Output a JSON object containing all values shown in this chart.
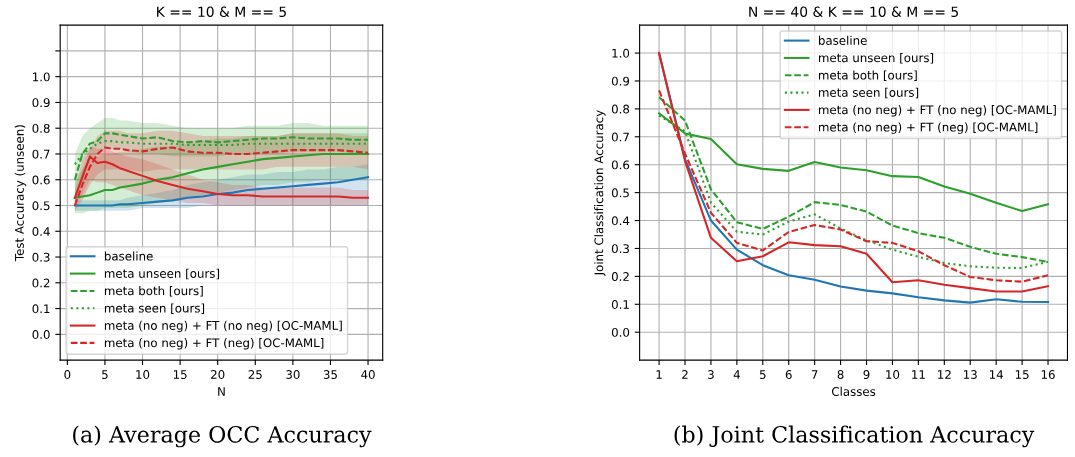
{
  "chart_data": [
    {
      "type": "line",
      "title": "K == 10 & M == 5",
      "xlabel": "N",
      "ylabel": "Test Accuracy (unseen)",
      "annotations": [
        "(a) Average OCC Accuracy"
      ],
      "x": [
        1,
        2,
        3,
        4,
        5,
        6,
        7,
        8,
        10,
        12,
        14,
        16,
        18,
        20,
        22,
        24,
        26,
        28,
        30,
        32,
        34,
        36,
        38,
        40
      ],
      "xlim": [
        -0.95,
        41.95
      ],
      "xticks": [
        0,
        5,
        10,
        15,
        20,
        25,
        30,
        35,
        40
      ],
      "ylim": [
        -0.1,
        1.2
      ],
      "yticks": [
        {
          "value": 0,
          "label": "0.0"
        },
        0.1,
        0.2,
        0.3,
        0.4,
        0.5,
        0.6,
        0.7,
        0.8,
        0.9,
        {
          "value": 1,
          "label": "1.0"
        },
        {
          "value": 1.1,
          "label": null
        }
      ],
      "grid": true,
      "legend": "bottom left",
      "series": [
        {
          "name": "baseline",
          "color": "#1f77b4",
          "line_style": "solid",
          "values": [
            0.5,
            0.5,
            0.5,
            0.5,
            0.5,
            0.5,
            0.505,
            0.505,
            0.51,
            0.515,
            0.52,
            0.53,
            0.535,
            0.545,
            0.55,
            0.56,
            0.565,
            0.57,
            0.575,
            0.58,
            0.585,
            0.59,
            0.6,
            0.61
          ],
          "lower": [
            0.48,
            0.48,
            0.48,
            0.48,
            0.48,
            0.48,
            0.48,
            0.48,
            0.49,
            0.49,
            0.49,
            0.49,
            0.5,
            0.5,
            0.5,
            0.5,
            0.5,
            0.5,
            0.5,
            0.5,
            0.5,
            0.5,
            0.5,
            0.5
          ],
          "upper": [
            0.52,
            0.52,
            0.52,
            0.52,
            0.52,
            0.52,
            0.52,
            0.53,
            0.54,
            0.55,
            0.56,
            0.58,
            0.59,
            0.6,
            0.61,
            0.62,
            0.62,
            0.63,
            0.63,
            0.64,
            0.64,
            0.65,
            0.65,
            0.66
          ]
        },
        {
          "name": "meta unseen [ours]",
          "color": "#2ca02c",
          "line_style": "solid",
          "values": [
            0.53,
            0.535,
            0.54,
            0.55,
            0.56,
            0.56,
            0.57,
            0.575,
            0.585,
            0.6,
            0.61,
            0.625,
            0.64,
            0.65,
            0.66,
            0.67,
            0.68,
            0.685,
            0.69,
            0.695,
            0.7,
            0.7,
            0.7,
            0.7
          ],
          "lower": [
            0.47,
            0.47,
            0.48,
            0.48,
            0.49,
            0.49,
            0.49,
            0.49,
            0.5,
            0.51,
            0.52,
            0.53,
            0.54,
            0.55,
            0.56,
            0.57,
            0.58,
            0.58,
            0.59,
            0.59,
            0.6,
            0.6,
            0.6,
            0.6
          ],
          "upper": [
            0.6,
            0.64,
            0.67,
            0.69,
            0.7,
            0.7,
            0.71,
            0.71,
            0.72,
            0.73,
            0.73,
            0.74,
            0.75,
            0.76,
            0.76,
            0.77,
            0.77,
            0.77,
            0.78,
            0.78,
            0.78,
            0.78,
            0.78,
            0.78
          ]
        },
        {
          "name": "meta both [ours]",
          "color": "#2ca02c",
          "line_style": "dashed",
          "values": [
            0.6,
            0.7,
            0.74,
            0.75,
            0.78,
            0.78,
            0.775,
            0.77,
            0.76,
            0.765,
            0.75,
            0.745,
            0.75,
            0.745,
            0.75,
            0.755,
            0.76,
            0.76,
            0.765,
            0.76,
            0.76,
            0.76,
            0.755,
            0.755
          ],
          "lower": [
            0.5,
            0.62,
            0.67,
            0.7,
            0.72,
            0.72,
            0.72,
            0.71,
            0.7,
            0.7,
            0.69,
            0.69,
            0.69,
            0.69,
            0.7,
            0.7,
            0.7,
            0.7,
            0.71,
            0.71,
            0.71,
            0.71,
            0.7,
            0.7
          ],
          "upper": [
            0.7,
            0.77,
            0.8,
            0.82,
            0.84,
            0.84,
            0.83,
            0.83,
            0.82,
            0.82,
            0.81,
            0.8,
            0.8,
            0.8,
            0.8,
            0.81,
            0.81,
            0.81,
            0.82,
            0.82,
            0.81,
            0.81,
            0.81,
            0.81
          ]
        },
        {
          "name": "meta seen [ours]",
          "color": "#2ca02c",
          "line_style": "dotted",
          "values": [
            0.66,
            0.7,
            0.72,
            0.74,
            0.75,
            0.75,
            0.745,
            0.745,
            0.74,
            0.74,
            0.74,
            0.735,
            0.735,
            0.735,
            0.735,
            0.74,
            0.74,
            0.74,
            0.74,
            0.74,
            0.74,
            0.74,
            0.74,
            0.74
          ]
        },
        {
          "name": "meta (no neg) + FT (no neg) [OC-MAML]",
          "color": "#d62728",
          "line_style": "solid",
          "values": [
            0.53,
            0.61,
            0.69,
            0.665,
            0.67,
            0.66,
            0.645,
            0.635,
            0.615,
            0.595,
            0.58,
            0.565,
            0.555,
            0.545,
            0.54,
            0.54,
            0.535,
            0.535,
            0.535,
            0.535,
            0.535,
            0.535,
            0.53,
            0.53
          ],
          "lower": [
            0.5,
            0.54,
            0.6,
            0.59,
            0.59,
            0.58,
            0.57,
            0.56,
            0.54,
            0.53,
            0.52,
            0.51,
            0.51,
            0.5,
            0.5,
            0.5,
            0.5,
            0.5,
            0.5,
            0.5,
            0.5,
            0.5,
            0.5,
            0.5
          ],
          "upper": [
            0.56,
            0.68,
            0.73,
            0.72,
            0.72,
            0.71,
            0.7,
            0.69,
            0.68,
            0.66,
            0.64,
            0.62,
            0.6,
            0.59,
            0.58,
            0.58,
            0.57,
            0.57,
            0.57,
            0.57,
            0.57,
            0.57,
            0.56,
            0.56
          ]
        },
        {
          "name": "meta (no neg) + FT (neg) [OC-MAML]",
          "color": "#d62728",
          "line_style": "dashed",
          "values": [
            0.5,
            0.58,
            0.65,
            0.7,
            0.725,
            0.72,
            0.72,
            0.715,
            0.71,
            0.72,
            0.725,
            0.71,
            0.705,
            0.705,
            0.7,
            0.7,
            0.705,
            0.71,
            0.715,
            0.715,
            0.715,
            0.715,
            0.71,
            0.705
          ],
          "lower": [
            0.48,
            0.52,
            0.58,
            0.62,
            0.64,
            0.64,
            0.64,
            0.64,
            0.63,
            0.64,
            0.64,
            0.64,
            0.64,
            0.64,
            0.64,
            0.64,
            0.64,
            0.65,
            0.65,
            0.65,
            0.65,
            0.65,
            0.65,
            0.64
          ],
          "upper": [
            0.52,
            0.64,
            0.72,
            0.77,
            0.79,
            0.79,
            0.79,
            0.78,
            0.78,
            0.79,
            0.79,
            0.78,
            0.77,
            0.77,
            0.77,
            0.77,
            0.77,
            0.77,
            0.78,
            0.78,
            0.78,
            0.78,
            0.77,
            0.77
          ]
        }
      ]
    },
    {
      "type": "line",
      "title": "N == 40 & K == 10 & M == 5",
      "xlabel": "Classes",
      "ylabel": "Joint Classification Accuracy",
      "annotations": [
        "(b) Joint Classification Accuracy"
      ],
      "categories": [
        "1",
        "2",
        "3",
        "4",
        "5",
        "6",
        "7",
        "8",
        "9",
        "10",
        "11",
        "12",
        "13",
        "14",
        "15",
        "16"
      ],
      "ylim": [
        -0.1,
        1.1
      ],
      "yticks": [
        {
          "value": 0,
          "label": "0.0"
        },
        0.1,
        0.2,
        0.3,
        0.4,
        0.5,
        0.6,
        0.7,
        0.8,
        0.9,
        {
          "value": 1,
          "label": "1.0"
        }
      ],
      "grid": true,
      "legend": "top right",
      "series": [
        {
          "name": "baseline",
          "color": "#1f77b4",
          "line_style": "solid",
          "values": [
            1.0,
            0.62,
            0.4,
            0.296,
            0.24,
            0.204,
            0.188,
            0.164,
            0.149,
            0.139,
            0.125,
            0.114,
            0.106,
            0.118,
            0.109,
            0.108
          ]
        },
        {
          "name": "meta unseen [ours]",
          "color": "#2ca02c",
          "line_style": "solid",
          "values": [
            0.784,
            0.712,
            0.692,
            0.602,
            0.585,
            0.578,
            0.61,
            0.59,
            0.58,
            0.559,
            0.556,
            0.522,
            0.496,
            0.464,
            0.434,
            0.458
          ]
        },
        {
          "name": "meta both [ours]",
          "color": "#2ca02c",
          "line_style": "dashed",
          "values": [
            0.842,
            0.758,
            0.512,
            0.394,
            0.37,
            0.414,
            0.466,
            0.456,
            0.432,
            0.382,
            0.355,
            0.338,
            0.306,
            0.281,
            0.269,
            0.252
          ]
        },
        {
          "name": "meta seen [ours]",
          "color": "#2ca02c",
          "line_style": "dotted",
          "values": [
            0.776,
            0.72,
            0.464,
            0.36,
            0.35,
            0.396,
            0.422,
            0.372,
            0.329,
            0.296,
            0.27,
            0.248,
            0.236,
            0.231,
            0.23,
            0.252
          ]
        },
        {
          "name": "meta (no neg) + FT (no neg) [OC-MAML]",
          "color": "#d62728",
          "line_style": "solid",
          "values": [
            1.0,
            0.614,
            0.338,
            0.254,
            0.272,
            0.322,
            0.312,
            0.308,
            0.281,
            0.179,
            0.186,
            0.17,
            0.158,
            0.146,
            0.146,
            0.165
          ]
        },
        {
          "name": "meta (no neg) + FT (neg) [OC-MAML]",
          "color": "#d62728",
          "line_style": "dashed",
          "values": [
            0.866,
            0.64,
            0.428,
            0.32,
            0.293,
            0.359,
            0.384,
            0.368,
            0.326,
            0.32,
            0.29,
            0.24,
            0.198,
            0.186,
            0.181,
            0.204
          ]
        }
      ]
    }
  ]
}
